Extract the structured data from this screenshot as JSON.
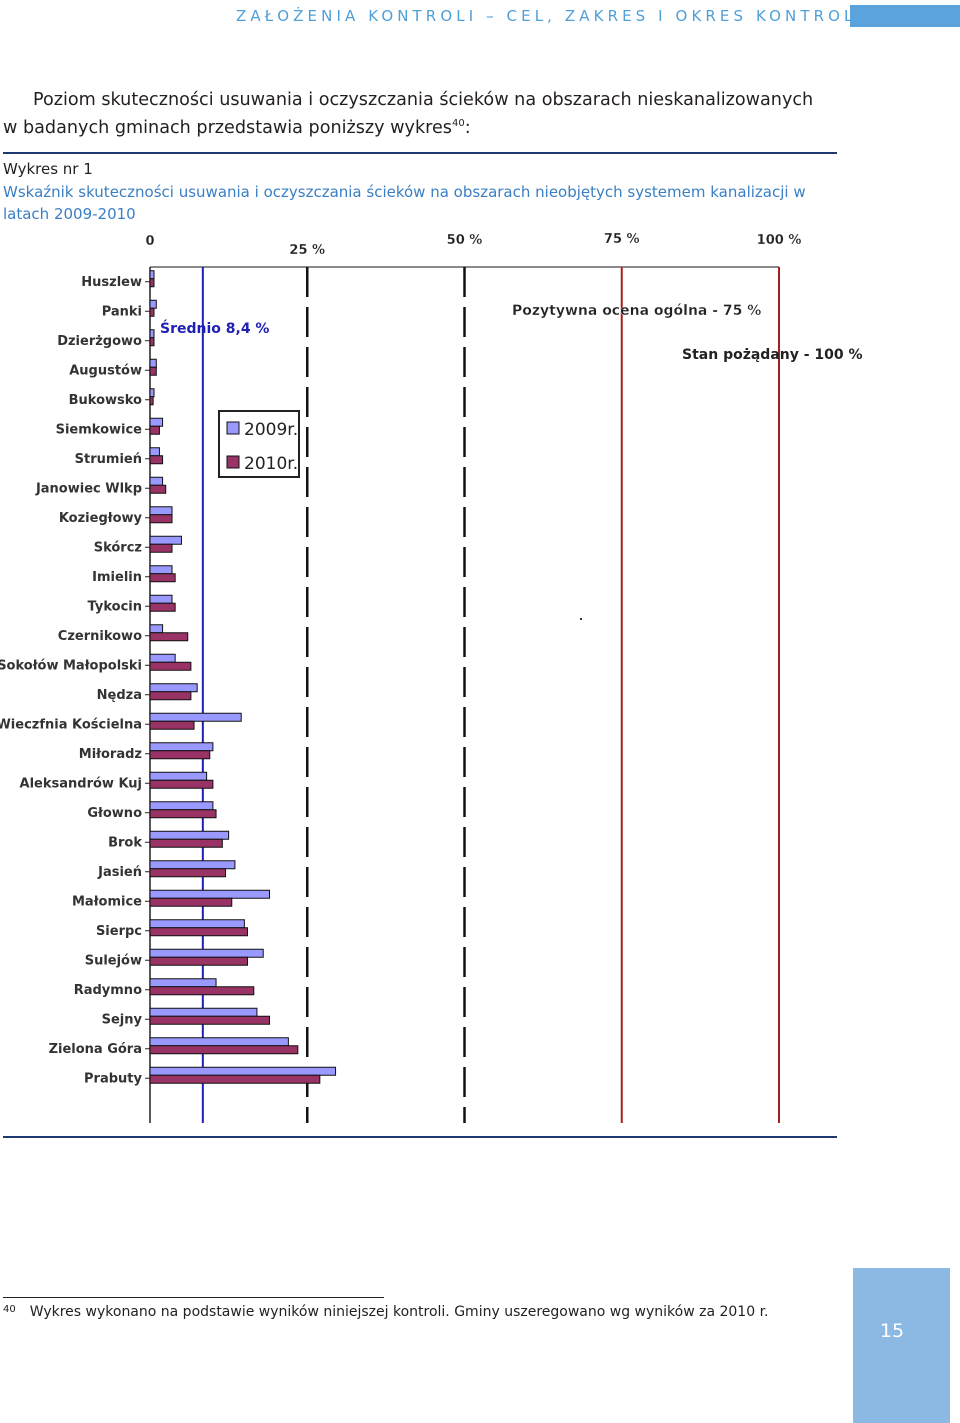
{
  "header": {
    "title": "ZAŁOŻENIA KONTROLI – CEL, ZAKRES I OKRES KONTROLI",
    "accent_color": "#5aa3dc"
  },
  "intro": {
    "line1": "Poziom skuteczności usuwania i oczyszczania ścieków na obszarach nieskanalizowanych",
    "line2": "w badanych gminach przedstawia poniższy wykres",
    "footnote_ref": "40",
    "line2_end": ":"
  },
  "chart_label": "Wykres nr 1",
  "chart_caption": "Wskaźnik skuteczności usuwania i oczyszczania ścieków na obszarach nieobjętych systemem kanalizacji w latach 2009-2010",
  "chart_data": {
    "type": "bar",
    "orientation": "horizontal",
    "x_ticks": [
      "0",
      "25 %",
      "50 %",
      "75 %",
      "100 %"
    ],
    "xlim": [
      0,
      100
    ],
    "categories": [
      "Huszlew",
      "Panki",
      "Dzierżgowo",
      "Augustów",
      "Bukowsko",
      "Siemkowice",
      "Strumień",
      "Janowiec Wlkp",
      "Koziegłowy",
      "Skórcz",
      "Imielin",
      "Tykocin",
      "Czernikowo",
      "Sokołów Małopolski",
      "Nędza",
      "Wieczfnia Kościelna",
      "Miłoradz",
      "Aleksandrów Kuj",
      "Głowno",
      "Brok",
      "Jasień",
      "Małomice",
      "Sierpc",
      "Sulejów",
      "Radymno",
      "Sejny",
      "Zielona Góra",
      "Prabuty"
    ],
    "series": [
      {
        "name": "2009r.",
        "color": "#9999ff",
        "values": [
          0,
          1,
          0,
          1,
          0,
          2,
          1.5,
          2,
          3.5,
          5,
          3.5,
          3.5,
          2,
          4,
          7.5,
          14.5,
          10,
          9,
          10,
          12.5,
          13.5,
          19,
          15,
          18,
          10.5,
          17,
          22,
          29.5
        ]
      },
      {
        "name": "2010r.",
        "color": "#993366",
        "values": [
          0,
          0,
          0,
          1,
          0.5,
          1.5,
          2,
          2.5,
          3.5,
          3.5,
          4,
          4,
          6,
          6.5,
          6.5,
          7,
          9.5,
          10,
          10.5,
          11.5,
          12,
          13,
          15.5,
          15.5,
          16.5,
          19,
          23.5,
          27
        ]
      }
    ],
    "reference_lines": [
      {
        "label": "Średnio 8,4 %",
        "value": 8.4,
        "color": "#1f1fb5"
      },
      {
        "label": "Pozytywna ocena ogólna - 75 %",
        "value": 75,
        "color": "#a31f1f"
      },
      {
        "label": "Stan pożądany - 100 %",
        "value": 100,
        "color": "#a31f1f"
      }
    ],
    "dashed_lines": [
      25,
      50
    ],
    "legend_position": "top-left-inside"
  },
  "footnote": {
    "number": "40",
    "text": "Wykres wykonano na podstawie wyników niniejszej kontroli. Gminy uszeregowano wg wyników za 2010 r."
  },
  "page_number": "15"
}
